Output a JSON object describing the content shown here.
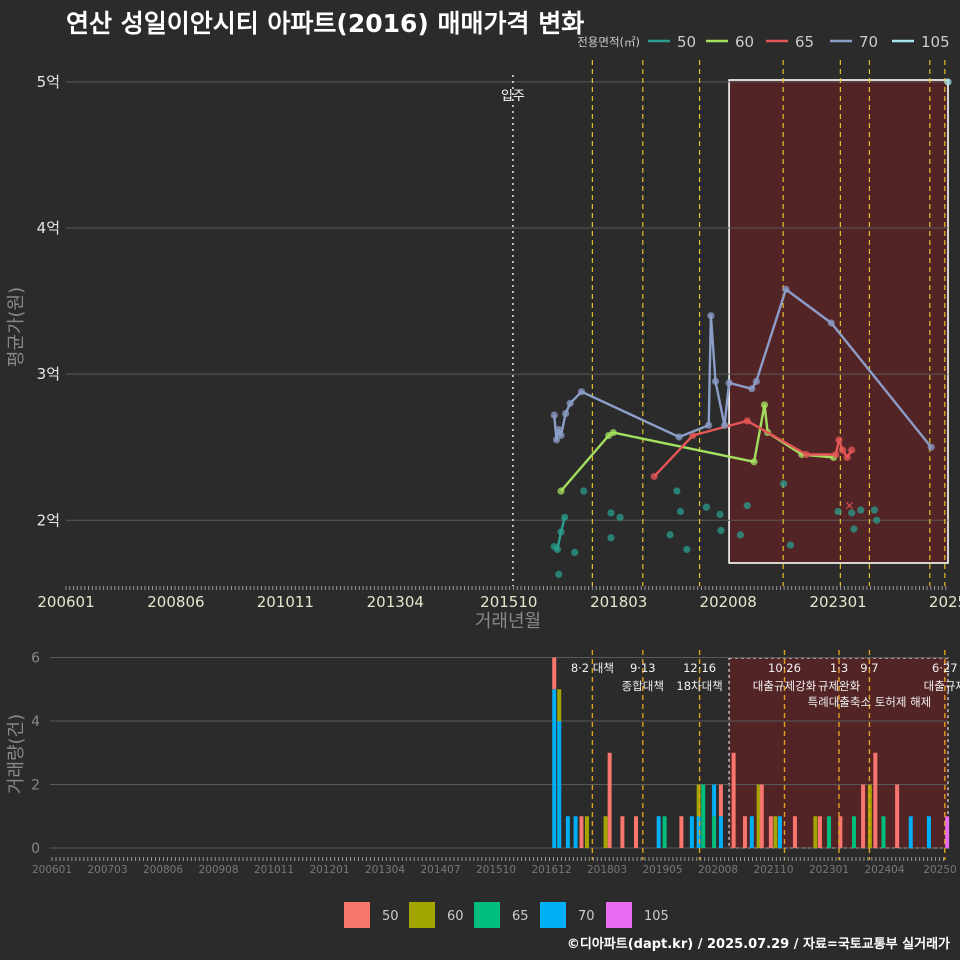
{
  "title": "연산 성일이안시티 아파트(2016) 매매가격 변화",
  "footer": "©디아파트(dapt.kr) / 2025.07.29 / 자료=국토교통부 실거래가",
  "colors": {
    "background": "#2b2b2b",
    "grid": "#5a5a5a",
    "highlight_fill": "#5a2326",
    "policy_line": "#e6c229",
    "movein_line": "#dddddd"
  },
  "chart_data": [
    {
      "type": "line",
      "name": "price",
      "title": "연산 성일이안시티 아파트(2016) 매매가격 변화",
      "xlabel": "거래년월",
      "ylabel": "평균가(원)",
      "x_tick_labels": [
        "200601",
        "200806",
        "201011",
        "201304",
        "201510",
        "201803",
        "202008",
        "202301",
        "2025"
      ],
      "y_ticks": [
        2,
        3,
        4,
        5
      ],
      "y_tick_labels": [
        "2억",
        "3억",
        "4억",
        "5억"
      ],
      "ylim_eok": [
        1.55,
        5.15
      ],
      "legend_title": "전용면적(㎡)",
      "legend": [
        {
          "name": "50",
          "color": "#2a9d8f"
        },
        {
          "name": "60",
          "color": "#a3e05f"
        },
        {
          "name": "65",
          "color": "#e45756"
        },
        {
          "name": "70",
          "color": "#8c9dc8"
        },
        {
          "name": "105",
          "color": "#a8e6f0"
        }
      ],
      "movein": {
        "x": 2015.84,
        "label": "입주"
      },
      "policy_lines_x": [
        2017.59,
        2018.7,
        2019.95,
        2021.79,
        2023.05,
        2023.69,
        2025.02,
        2025.35
      ],
      "highlight_range": [
        2020.6,
        2025.42
      ],
      "series": [
        {
          "name": "50",
          "color": "#2a9d8f",
          "line": [
            [
              2016.75,
              1.82
            ],
            [
              2016.82,
              1.8
            ],
            [
              2016.9,
              1.92
            ],
            [
              2016.98,
              2.02
            ]
          ],
          "points": [
            [
              2016.75,
              1.82
            ],
            [
              2016.82,
              1.8
            ],
            [
              2016.9,
              1.92
            ],
            [
              2016.98,
              2.02
            ],
            [
              2016.85,
              1.63
            ],
            [
              2017.2,
              1.78
            ],
            [
              2017.4,
              2.2
            ],
            [
              2018.0,
              1.88
            ],
            [
              2018.0,
              2.05
            ],
            [
              2018.2,
              2.02
            ],
            [
              2019.3,
              1.9
            ],
            [
              2019.45,
              2.2
            ],
            [
              2019.53,
              2.06
            ],
            [
              2019.67,
              1.8
            ],
            [
              2020.1,
              2.09
            ],
            [
              2020.4,
              2.04
            ],
            [
              2020.42,
              1.93
            ],
            [
              2020.85,
              1.9
            ],
            [
              2021.0,
              2.1
            ],
            [
              2021.8,
              2.25
            ],
            [
              2021.95,
              1.83
            ],
            [
              2023.0,
              2.06
            ],
            [
              2023.3,
              2.05
            ],
            [
              2023.35,
              1.94
            ],
            [
              2023.5,
              2.07
            ],
            [
              2023.8,
              2.07
            ],
            [
              2023.85,
              2.0
            ]
          ]
        },
        {
          "name": "60",
          "color": "#a3e05f",
          "line": [
            [
              2016.9,
              2.2
            ],
            [
              2017.95,
              2.58
            ],
            [
              2018.05,
              2.6
            ],
            [
              2021.15,
              2.4
            ],
            [
              2021.38,
              2.79
            ],
            [
              2021.45,
              2.6
            ],
            [
              2022.2,
              2.45
            ],
            [
              2022.9,
              2.43
            ]
          ],
          "points": [
            [
              2016.9,
              2.2
            ],
            [
              2017.95,
              2.58
            ],
            [
              2018.05,
              2.6
            ],
            [
              2021.15,
              2.4
            ],
            [
              2021.38,
              2.79
            ],
            [
              2021.45,
              2.6
            ],
            [
              2022.2,
              2.45
            ],
            [
              2022.9,
              2.43
            ]
          ]
        },
        {
          "name": "65",
          "color": "#e45756",
          "line": [
            [
              2018.95,
              2.3
            ],
            [
              2019.8,
              2.58
            ],
            [
              2021.0,
              2.68
            ],
            [
              2022.3,
              2.45
            ],
            [
              2022.95,
              2.45
            ],
            [
              2023.02,
              2.55
            ],
            [
              2023.1,
              2.48
            ],
            [
              2023.2,
              2.43
            ],
            [
              2023.3,
              2.48
            ]
          ],
          "points": [
            [
              2018.95,
              2.3
            ],
            [
              2019.8,
              2.58
            ],
            [
              2021.0,
              2.68
            ],
            [
              2022.3,
              2.45
            ],
            [
              2022.95,
              2.45
            ],
            [
              2023.02,
              2.55
            ],
            [
              2023.1,
              2.48
            ],
            [
              2023.2,
              2.43
            ],
            [
              2023.3,
              2.48
            ]
          ]
        },
        {
          "name": "70",
          "color": "#8c9dc8",
          "line": [
            [
              2016.75,
              2.72
            ],
            [
              2016.8,
              2.55
            ],
            [
              2016.85,
              2.62
            ],
            [
              2016.9,
              2.58
            ],
            [
              2017.0,
              2.73
            ],
            [
              2017.1,
              2.8
            ],
            [
              2017.35,
              2.88
            ],
            [
              2019.5,
              2.57
            ],
            [
              2020.15,
              2.65
            ],
            [
              2020.2,
              3.4
            ],
            [
              2020.3,
              2.95
            ],
            [
              2020.5,
              2.65
            ],
            [
              2020.6,
              2.94
            ],
            [
              2021.1,
              2.9
            ],
            [
              2021.2,
              2.95
            ],
            [
              2021.85,
              3.58
            ],
            [
              2022.85,
              3.35
            ],
            [
              2025.05,
              2.5
            ]
          ],
          "points": [
            [
              2016.75,
              2.72
            ],
            [
              2016.8,
              2.55
            ],
            [
              2016.85,
              2.62
            ],
            [
              2016.9,
              2.58
            ],
            [
              2017.0,
              2.73
            ],
            [
              2017.1,
              2.8
            ],
            [
              2017.35,
              2.88
            ],
            [
              2019.5,
              2.57
            ],
            [
              2020.15,
              2.65
            ],
            [
              2020.2,
              3.4
            ],
            [
              2020.3,
              2.95
            ],
            [
              2020.5,
              2.65
            ],
            [
              2020.6,
              2.94
            ],
            [
              2021.1,
              2.9
            ],
            [
              2021.2,
              2.95
            ],
            [
              2021.85,
              3.58
            ],
            [
              2022.85,
              3.35
            ],
            [
              2025.05,
              2.5
            ]
          ]
        },
        {
          "name": "105",
          "color": "#a8e6f0",
          "line": [],
          "points": [
            [
              2025.42,
              5.0
            ]
          ]
        }
      ],
      "markers": [
        {
          "x": 2023.25,
          "y": 2.1,
          "symbol": "×",
          "color": "#e45756"
        }
      ]
    },
    {
      "type": "bar",
      "name": "volume",
      "xlabel": "",
      "ylabel": "거래량(건)",
      "y_ticks": [
        0,
        2,
        4,
        6
      ],
      "ylim": [
        0,
        6.3
      ],
      "x_tick_labels": [
        "200601",
        "200703",
        "200806",
        "200908",
        "201011",
        "201201",
        "201304",
        "201407",
        "201510",
        "201612",
        "201803",
        "201905",
        "202008",
        "202110",
        "202301",
        "202404",
        "20250"
      ],
      "legend": [
        {
          "name": "50",
          "color": "#f8766d"
        },
        {
          "name": "60",
          "color": "#a3a500"
        },
        {
          "name": "65",
          "color": "#00bf7d"
        },
        {
          "name": "70",
          "color": "#00b0f6"
        },
        {
          "name": "105",
          "color": "#e76bf3"
        }
      ],
      "policies": [
        {
          "x": 2017.59,
          "date": "8·2 대책",
          "text": ""
        },
        {
          "x": 2018.7,
          "date": "9·13",
          "text": "종합대책"
        },
        {
          "x": 2019.95,
          "date": "12·16",
          "text": "18차대책"
        },
        {
          "x": 2021.82,
          "date": "10·26",
          "text": "대출규제강화"
        },
        {
          "x": 2023.02,
          "date": "1·3",
          "text": "규제완화"
        },
        {
          "x": 2023.69,
          "date": "9·7",
          "text": "특례대출축소 토허제 해제"
        },
        {
          "x": 2025.35,
          "date": "6·27",
          "text": "대출규제"
        }
      ],
      "highlight_range": [
        2020.6,
        2025.42
      ],
      "bars": [
        {
          "x": 2016.75,
          "stack": [
            [
              "70",
              5
            ],
            [
              "50",
              1
            ]
          ]
        },
        {
          "x": 2016.86,
          "stack": [
            [
              "70",
              4
            ],
            [
              "60",
              1
            ]
          ]
        },
        {
          "x": 2017.05,
          "stack": [
            [
              "70",
              1
            ]
          ]
        },
        {
          "x": 2017.22,
          "stack": [
            [
              "70",
              1
            ]
          ]
        },
        {
          "x": 2017.35,
          "stack": [
            [
              "50",
              1
            ]
          ]
        },
        {
          "x": 2017.47,
          "stack": [
            [
              "60",
              1
            ]
          ]
        },
        {
          "x": 2017.88,
          "stack": [
            [
              "60",
              1
            ]
          ]
        },
        {
          "x": 2017.97,
          "stack": [
            [
              "50",
              3
            ]
          ]
        },
        {
          "x": 2018.25,
          "stack": [
            [
              "50",
              1
            ]
          ]
        },
        {
          "x": 2018.55,
          "stack": [
            [
              "50",
              1
            ]
          ]
        },
        {
          "x": 2019.05,
          "stack": [
            [
              "70",
              1
            ]
          ]
        },
        {
          "x": 2019.18,
          "stack": [
            [
              "65",
              1
            ]
          ]
        },
        {
          "x": 2019.55,
          "stack": [
            [
              "50",
              1
            ]
          ]
        },
        {
          "x": 2019.78,
          "stack": [
            [
              "70",
              1
            ]
          ]
        },
        {
          "x": 2019.93,
          "stack": [
            [
              "70",
              1
            ],
            [
              "60",
              1
            ]
          ]
        },
        {
          "x": 2020.03,
          "stack": [
            [
              "65",
              2
            ]
          ]
        },
        {
          "x": 2020.27,
          "stack": [
            [
              "65",
              1
            ],
            [
              "70",
              1
            ]
          ]
        },
        {
          "x": 2020.42,
          "stack": [
            [
              "70",
              1
            ],
            [
              "50",
              1
            ]
          ]
        },
        {
          "x": 2020.7,
          "stack": [
            [
              "50",
              3
            ]
          ]
        },
        {
          "x": 2020.95,
          "stack": [
            [
              "50",
              1
            ]
          ]
        },
        {
          "x": 2021.1,
          "stack": [
            [
              "70",
              1
            ]
          ]
        },
        {
          "x": 2021.25,
          "stack": [
            [
              "60",
              2
            ]
          ]
        },
        {
          "x": 2021.32,
          "stack": [
            [
              "50",
              2
            ]
          ]
        },
        {
          "x": 2021.52,
          "stack": [
            [
              "50",
              1
            ]
          ]
        },
        {
          "x": 2021.62,
          "stack": [
            [
              "60",
              1
            ]
          ]
        },
        {
          "x": 2021.72,
          "stack": [
            [
              "70",
              1
            ]
          ]
        },
        {
          "x": 2022.05,
          "stack": [
            [
              "50",
              1
            ]
          ]
        },
        {
          "x": 2022.5,
          "stack": [
            [
              "60",
              1
            ]
          ]
        },
        {
          "x": 2022.6,
          "stack": [
            [
              "50",
              1
            ]
          ]
        },
        {
          "x": 2022.8,
          "stack": [
            [
              "65",
              1
            ]
          ]
        },
        {
          "x": 2023.05,
          "stack": [
            [
              "50",
              1
            ]
          ]
        },
        {
          "x": 2023.35,
          "stack": [
            [
              "65",
              1
            ]
          ]
        },
        {
          "x": 2023.55,
          "stack": [
            [
              "50",
              2
            ]
          ]
        },
        {
          "x": 2023.7,
          "stack": [
            [
              "60",
              2
            ]
          ]
        },
        {
          "x": 2023.82,
          "stack": [
            [
              "50",
              3
            ]
          ]
        },
        {
          "x": 2024.0,
          "stack": [
            [
              "65",
              1
            ]
          ]
        },
        {
          "x": 2024.3,
          "stack": [
            [
              "50",
              2
            ]
          ]
        },
        {
          "x": 2024.6,
          "stack": [
            [
              "70",
              1
            ]
          ]
        },
        {
          "x": 2025.0,
          "stack": [
            [
              "70",
              1
            ]
          ]
        },
        {
          "x": 2025.4,
          "stack": [
            [
              "105",
              1
            ]
          ]
        }
      ]
    }
  ]
}
